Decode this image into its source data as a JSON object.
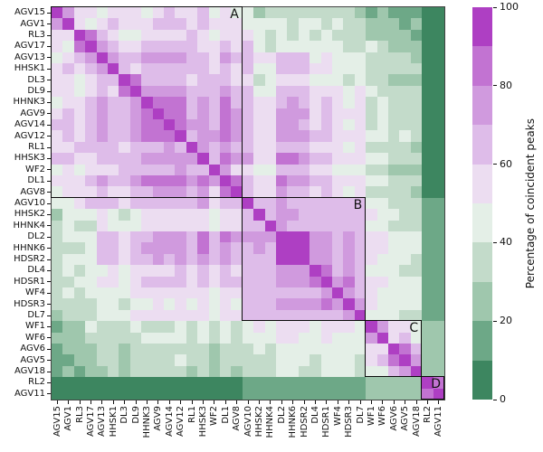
{
  "figure": {
    "background": "#ffffff",
    "colorbar": {
      "label": "Percentage of coincident peaks",
      "ticks": [
        0,
        20,
        40,
        60,
        80,
        100
      ],
      "min": 0,
      "max": 100,
      "n_segments": 10
    }
  },
  "chart_data": {
    "type": "heatmap",
    "description": "Symmetric station-by-station matrix of percentage of coincident peaks. Cell colours are binned in 10 discrete levels of 10% each: level L covers L*10 to (L+1)*10 percent. Diagonal cells = 100%. Black boxes on the diagonal mark clusters A, B, C, D.",
    "x_labels": [
      "AGV15",
      "AGV1",
      "RL3",
      "AGV17",
      "AGV13",
      "HHSK1",
      "DL3",
      "DL9",
      "HHNK3",
      "AGV9",
      "AGV14",
      "AGV12",
      "RL1",
      "HHSK3",
      "WF2",
      "DL1",
      "AGV8",
      "AGV10",
      "HHSK2",
      "HHNK4",
      "DL2",
      "HHNK6",
      "HDSR2",
      "DL4",
      "HDSR1",
      "WF4",
      "HDSR3",
      "DL7",
      "WF1",
      "WF6",
      "AGV6",
      "AGV5",
      "AGV18",
      "RL2",
      "AGV11"
    ],
    "y_labels": [
      "AGV15",
      "AGV1",
      "RL3",
      "AGV17",
      "AGV13",
      "HHSK1",
      "DL3",
      "DL9",
      "HHNK3",
      "AGV9",
      "AGV14",
      "AGV12",
      "RL1",
      "HHSK3",
      "WF2",
      "DL1",
      "AGV8",
      "AGV10",
      "HHSK2",
      "HHNK4",
      "DL2",
      "HHNK6",
      "HDSR2",
      "DL4",
      "HDSR1",
      "WF4",
      "HDSR3",
      "DL7",
      "WF1",
      "WF6",
      "AGV6",
      "AGV5",
      "AGV18",
      "RL2",
      "AGV11"
    ],
    "level_bin_pct": 10,
    "level_colors": [
      "#3d8660",
      "#6da887",
      "#9fc7ad",
      "#c3dbca",
      "#e4efe7",
      "#ecddf1",
      "#debce9",
      "#d09ade",
      "#c273d2",
      "#ae3fc3"
    ],
    "matrix_levels": [
      [
        9,
        7,
        5,
        5,
        4,
        5,
        5,
        5,
        4,
        5,
        6,
        5,
        5,
        6,
        4,
        5,
        4,
        4,
        2,
        3,
        3,
        3,
        3,
        3,
        3,
        3,
        3,
        2,
        1,
        2,
        1,
        1,
        1,
        0,
        0
      ],
      [
        7,
        9,
        5,
        4,
        5,
        6,
        5,
        5,
        5,
        6,
        6,
        6,
        5,
        6,
        5,
        5,
        5,
        4,
        4,
        4,
        4,
        3,
        4,
        4,
        3,
        4,
        3,
        3,
        2,
        2,
        2,
        1,
        2,
        0,
        0
      ],
      [
        5,
        5,
        9,
        8,
        6,
        5,
        4,
        4,
        5,
        5,
        5,
        5,
        6,
        5,
        4,
        5,
        5,
        5,
        4,
        3,
        4,
        3,
        4,
        3,
        4,
        3,
        3,
        3,
        2,
        2,
        2,
        2,
        1,
        0,
        0
      ],
      [
        5,
        4,
        8,
        9,
        7,
        6,
        5,
        5,
        6,
        6,
        6,
        6,
        6,
        5,
        5,
        6,
        5,
        6,
        4,
        3,
        4,
        4,
        4,
        4,
        4,
        4,
        3,
        3,
        4,
        3,
        2,
        2,
        2,
        0,
        0
      ],
      [
        4,
        5,
        6,
        7,
        9,
        7,
        6,
        6,
        7,
        7,
        7,
        7,
        6,
        6,
        5,
        7,
        6,
        6,
        5,
        5,
        6,
        6,
        6,
        4,
        5,
        4,
        4,
        4,
        3,
        3,
        3,
        3,
        2,
        0,
        0
      ],
      [
        5,
        6,
        5,
        6,
        7,
        9,
        6,
        5,
        6,
        6,
        6,
        6,
        6,
        6,
        5,
        6,
        5,
        6,
        4,
        4,
        6,
        6,
        6,
        5,
        5,
        4,
        4,
        4,
        3,
        3,
        3,
        3,
        3,
        0,
        0
      ],
      [
        5,
        5,
        4,
        5,
        6,
        6,
        9,
        8,
        6,
        6,
        6,
        6,
        5,
        6,
        6,
        6,
        5,
        5,
        3,
        4,
        5,
        5,
        5,
        4,
        4,
        4,
        3,
        4,
        3,
        3,
        2,
        2,
        2,
        0,
        0
      ],
      [
        5,
        5,
        4,
        5,
        6,
        5,
        8,
        9,
        7,
        7,
        7,
        7,
        6,
        6,
        6,
        7,
        6,
        6,
        4,
        4,
        6,
        6,
        6,
        5,
        5,
        5,
        4,
        5,
        4,
        3,
        3,
        3,
        3,
        0,
        0
      ],
      [
        4,
        5,
        5,
        6,
        7,
        6,
        6,
        7,
        9,
        8,
        8,
        8,
        6,
        7,
        6,
        8,
        6,
        6,
        5,
        5,
        6,
        7,
        6,
        5,
        6,
        5,
        4,
        5,
        3,
        4,
        3,
        3,
        3,
        0,
        0
      ],
      [
        5,
        6,
        5,
        6,
        7,
        6,
        6,
        7,
        8,
        9,
        8,
        8,
        6,
        7,
        6,
        8,
        7,
        6,
        5,
        5,
        7,
        7,
        7,
        5,
        6,
        5,
        5,
        5,
        3,
        4,
        3,
        3,
        3,
        0,
        0
      ],
      [
        6,
        6,
        5,
        6,
        7,
        6,
        6,
        7,
        8,
        8,
        9,
        8,
        7,
        7,
        6,
        8,
        7,
        6,
        5,
        5,
        7,
        7,
        6,
        5,
        6,
        5,
        4,
        5,
        3,
        4,
        3,
        3,
        3,
        0,
        0
      ],
      [
        5,
        6,
        5,
        6,
        7,
        6,
        6,
        7,
        8,
        8,
        8,
        9,
        6,
        7,
        7,
        8,
        7,
        6,
        5,
        5,
        7,
        7,
        7,
        6,
        6,
        5,
        5,
        5,
        4,
        4,
        3,
        4,
        3,
        0,
        0
      ],
      [
        5,
        5,
        6,
        6,
        6,
        6,
        5,
        6,
        6,
        6,
        7,
        6,
        9,
        7,
        6,
        7,
        6,
        6,
        5,
        5,
        6,
        6,
        6,
        5,
        5,
        5,
        4,
        5,
        3,
        3,
        3,
        3,
        2,
        0,
        0
      ],
      [
        6,
        6,
        5,
        5,
        6,
        6,
        6,
        6,
        7,
        7,
        7,
        7,
        7,
        9,
        6,
        8,
        7,
        7,
        5,
        5,
        8,
        8,
        7,
        6,
        6,
        5,
        5,
        5,
        4,
        4,
        3,
        3,
        3,
        0,
        0
      ],
      [
        4,
        5,
        4,
        5,
        5,
        5,
        6,
        6,
        6,
        6,
        6,
        7,
        6,
        6,
        9,
        7,
        5,
        5,
        4,
        4,
        6,
        6,
        6,
        5,
        5,
        4,
        4,
        4,
        3,
        3,
        2,
        2,
        2,
        0,
        0
      ],
      [
        5,
        5,
        5,
        6,
        7,
        6,
        6,
        7,
        8,
        8,
        8,
        8,
        7,
        8,
        7,
        9,
        8,
        6,
        5,
        5,
        8,
        7,
        7,
        6,
        6,
        5,
        5,
        5,
        4,
        4,
        3,
        3,
        3,
        0,
        0
      ],
      [
        4,
        5,
        5,
        5,
        6,
        5,
        5,
        6,
        6,
        7,
        7,
        7,
        6,
        7,
        5,
        8,
        9,
        6,
        5,
        5,
        7,
        6,
        6,
        5,
        6,
        5,
        4,
        5,
        3,
        3,
        3,
        3,
        2,
        0,
        0
      ],
      [
        4,
        4,
        5,
        6,
        6,
        6,
        5,
        6,
        6,
        6,
        6,
        6,
        6,
        7,
        5,
        6,
        6,
        9,
        6,
        6,
        7,
        6,
        6,
        6,
        6,
        6,
        6,
        6,
        4,
        4,
        3,
        3,
        3,
        1,
        1
      ],
      [
        2,
        4,
        4,
        4,
        5,
        4,
        3,
        4,
        5,
        5,
        5,
        5,
        5,
        5,
        4,
        5,
        5,
        6,
        9,
        6,
        7,
        7,
        6,
        6,
        6,
        6,
        6,
        6,
        5,
        4,
        4,
        3,
        3,
        1,
        1
      ],
      [
        3,
        4,
        3,
        3,
        5,
        4,
        4,
        4,
        5,
        5,
        5,
        5,
        5,
        5,
        4,
        5,
        5,
        6,
        6,
        9,
        7,
        6,
        6,
        6,
        6,
        6,
        6,
        6,
        4,
        4,
        3,
        3,
        3,
        1,
        1
      ],
      [
        3,
        4,
        4,
        4,
        6,
        6,
        5,
        6,
        6,
        7,
        7,
        7,
        6,
        8,
        6,
        8,
        7,
        7,
        7,
        7,
        9,
        9,
        9,
        7,
        7,
        6,
        7,
        6,
        5,
        5,
        4,
        4,
        4,
        1,
        1
      ],
      [
        3,
        3,
        3,
        4,
        6,
        6,
        5,
        6,
        7,
        7,
        7,
        7,
        6,
        8,
        6,
        7,
        6,
        6,
        7,
        6,
        9,
        9,
        9,
        7,
        7,
        6,
        7,
        6,
        5,
        5,
        4,
        4,
        4,
        1,
        1
      ],
      [
        3,
        4,
        4,
        4,
        6,
        6,
        5,
        6,
        6,
        7,
        6,
        7,
        6,
        7,
        6,
        7,
        6,
        6,
        6,
        6,
        9,
        9,
        9,
        7,
        7,
        6,
        7,
        6,
        5,
        4,
        4,
        4,
        3,
        1,
        1
      ],
      [
        3,
        4,
        3,
        4,
        4,
        5,
        4,
        5,
        5,
        5,
        5,
        6,
        5,
        6,
        5,
        6,
        5,
        6,
        6,
        6,
        7,
        7,
        7,
        9,
        8,
        6,
        7,
        6,
        4,
        4,
        4,
        3,
        3,
        1,
        1
      ],
      [
        3,
        3,
        4,
        4,
        5,
        5,
        4,
        5,
        6,
        6,
        6,
        6,
        5,
        6,
        5,
        6,
        6,
        6,
        6,
        6,
        7,
        7,
        7,
        8,
        9,
        7,
        8,
        6,
        5,
        5,
        4,
        4,
        4,
        1,
        1
      ],
      [
        3,
        4,
        3,
        4,
        4,
        4,
        4,
        5,
        5,
        5,
        5,
        5,
        5,
        5,
        4,
        5,
        5,
        6,
        6,
        6,
        6,
        6,
        6,
        6,
        7,
        9,
        7,
        6,
        5,
        4,
        4,
        4,
        4,
        1,
        1
      ],
      [
        3,
        3,
        3,
        3,
        4,
        4,
        3,
        4,
        4,
        5,
        4,
        5,
        4,
        5,
        4,
        5,
        4,
        6,
        6,
        6,
        7,
        7,
        7,
        7,
        8,
        7,
        9,
        7,
        5,
        4,
        4,
        4,
        4,
        1,
        1
      ],
      [
        2,
        3,
        3,
        3,
        4,
        4,
        4,
        5,
        5,
        5,
        5,
        5,
        5,
        5,
        4,
        5,
        5,
        6,
        6,
        6,
        6,
        6,
        6,
        6,
        6,
        6,
        7,
        9,
        4,
        4,
        4,
        3,
        3,
        1,
        1
      ],
      [
        1,
        2,
        2,
        4,
        3,
        3,
        3,
        4,
        3,
        3,
        3,
        4,
        3,
        4,
        3,
        4,
        3,
        4,
        5,
        4,
        5,
        5,
        5,
        4,
        5,
        5,
        5,
        4,
        9,
        7,
        5,
        5,
        4,
        2,
        2
      ],
      [
        2,
        2,
        2,
        3,
        3,
        3,
        3,
        3,
        4,
        4,
        4,
        4,
        3,
        4,
        3,
        4,
        3,
        4,
        4,
        4,
        5,
        5,
        4,
        4,
        5,
        4,
        4,
        4,
        7,
        9,
        5,
        6,
        4,
        2,
        2
      ],
      [
        1,
        2,
        2,
        2,
        3,
        3,
        2,
        3,
        3,
        3,
        3,
        3,
        3,
        3,
        2,
        3,
        3,
        3,
        4,
        3,
        4,
        4,
        4,
        4,
        4,
        4,
        4,
        4,
        5,
        5,
        9,
        8,
        6,
        2,
        2
      ],
      [
        1,
        1,
        2,
        2,
        3,
        3,
        2,
        3,
        3,
        3,
        3,
        4,
        3,
        3,
        2,
        3,
        3,
        3,
        3,
        3,
        4,
        4,
        4,
        3,
        4,
        4,
        4,
        3,
        5,
        6,
        8,
        9,
        7,
        2,
        2
      ],
      [
        1,
        2,
        1,
        2,
        2,
        3,
        2,
        3,
        3,
        3,
        3,
        3,
        2,
        3,
        2,
        3,
        2,
        3,
        3,
        3,
        4,
        4,
        3,
        3,
        4,
        4,
        4,
        3,
        4,
        4,
        6,
        7,
        9,
        2,
        2
      ],
      [
        0,
        0,
        0,
        0,
        0,
        0,
        0,
        0,
        0,
        0,
        0,
        0,
        0,
        0,
        0,
        0,
        0,
        1,
        1,
        1,
        1,
        1,
        1,
        1,
        1,
        1,
        1,
        1,
        2,
        2,
        2,
        2,
        2,
        9,
        8
      ],
      [
        0,
        0,
        0,
        0,
        0,
        0,
        0,
        0,
        0,
        0,
        0,
        0,
        0,
        0,
        0,
        0,
        0,
        1,
        1,
        1,
        1,
        1,
        1,
        1,
        1,
        1,
        1,
        1,
        2,
        2,
        2,
        2,
        2,
        8,
        9
      ]
    ],
    "clusters": [
      {
        "label": "A",
        "start_index": 0,
        "size": 17
      },
      {
        "label": "B",
        "start_index": 17,
        "size": 11
      },
      {
        "label": "C",
        "start_index": 28,
        "size": 5
      },
      {
        "label": "D",
        "start_index": 33,
        "size": 2
      }
    ],
    "colorbar_label": "Percentage of coincident peaks",
    "colorbar_ticks": [
      0,
      20,
      40,
      60,
      80,
      100
    ],
    "legend_position": "right",
    "grid": false
  }
}
